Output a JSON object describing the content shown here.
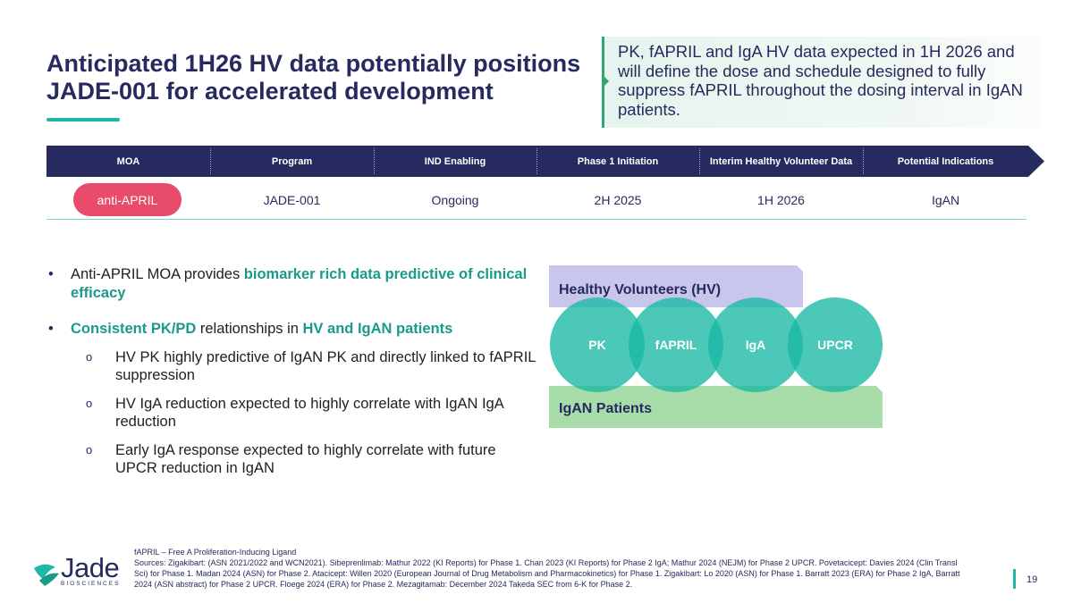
{
  "title": {
    "line1": "Anticipated 1H26 HV data potentially positions",
    "line2": "JADE-001 for accelerated development"
  },
  "callout": {
    "text": "PK, fAPRIL and IgA HV data expected in 1H 2026 and will define the dose and schedule designed to fully suppress fAPRIL throughout the dosing interval in IgAN patients."
  },
  "timeline": {
    "headers": [
      "MOA",
      "Program",
      "IND Enabling",
      "Phase 1 Initiation",
      "Interim Healthy Volunteer Data",
      "Potential Indications"
    ],
    "row": {
      "moa": "anti-APRIL",
      "program": "JADE-001",
      "ind_enabling": "Ongoing",
      "phase1": "2H 2025",
      "interim_hv": "1H 2026",
      "indications": "IgAN"
    }
  },
  "bullets": {
    "b1_pre": "Anti-APRIL MOA provides ",
    "b1_hl": "biomarker rich data predictive of clinical efficacy",
    "b2_hl1": "Consistent PK/PD",
    "b2_mid": " relationships in ",
    "b2_hl2": "HV and IgAN patients",
    "sub_marker": "o",
    "subs": [
      "HV PK highly predictive of IgAN PK and directly linked to fAPRIL suppression",
      "HV IgA reduction expected to highly correlate with IgAN IgA reduction",
      "Early IgA response expected to highly correlate with future UPCR reduction in IgAN"
    ]
  },
  "diagram": {
    "hv_label": "Healthy Volunteers (HV)",
    "igan_label": "IgAN Patients",
    "circles": [
      "PK",
      "fAPRIL",
      "IgA",
      "UPCR"
    ]
  },
  "footnote": {
    "line1": "fAPRIL – Free A Proliferation-Inducing Ligand",
    "line2": "Sources: Zigakibart: (ASN 2021/2022 and WCN2021). Sibeprenlimab: Mathur 2022 (KI Reports) for Phase 1. Chan 2023 (KI Reports) for Phase 2 IgA; Mathur 2024 (NEJM) for Phase 2 UPCR. Povetacicept: Davies 2024 (Clin Transl Sci) for Phase 1. Madan 2024 (ASN) for Phase 2. Atacicept: Willen 2020 (European Journal of Drug Metabolism and Pharmacokinetics) for Phase 1. Zigakibart: Lo 2020 (ASN) for Phase 1. Barratt 2023 (ERA) for Phase 2 IgA, Barratt 2024 (ASN abstract) for Phase 2 UPCR. Floege 2024 (ERA) for Phase 2. Mezagitamab: December 2024 Takeda SEC from 6-K for Phase 2."
  },
  "logo": {
    "name": "Jade",
    "sub": "BIOSCIENCES"
  },
  "page_number": "19",
  "colors": {
    "navy": "#262a5e",
    "teal": "#1fb7a6",
    "pink": "#e94b6a",
    "lavender": "#c8c6ec",
    "green": "#a8dca8"
  }
}
